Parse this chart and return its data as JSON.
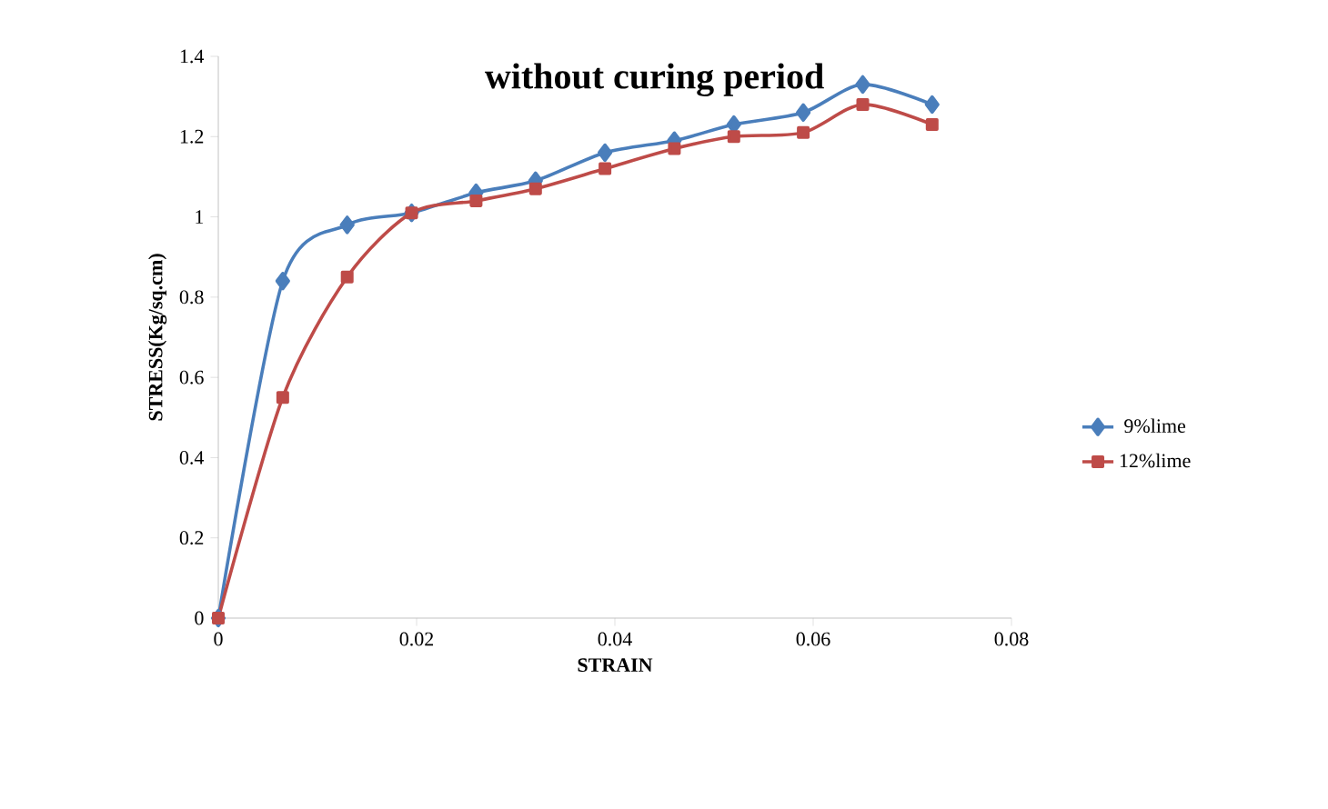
{
  "chart_data": {
    "type": "line",
    "title": "without curing period",
    "xlabel": "STRAIN",
    "ylabel": "STRESS(Kg/sq.cm)",
    "x": [
      0,
      0.0065,
      0.013,
      0.0195,
      0.026,
      0.032,
      0.039,
      0.046,
      0.052,
      0.059,
      0.065,
      0.072
    ],
    "series": [
      {
        "name": "9%lime",
        "color": "#4a7ebb",
        "marker": "diamond",
        "values": [
          0,
          0.84,
          0.98,
          1.01,
          1.06,
          1.09,
          1.16,
          1.19,
          1.23,
          1.26,
          1.33,
          1.28
        ]
      },
      {
        "name": "12%lime",
        "color": "#be4b48",
        "marker": "square",
        "values": [
          0,
          0.55,
          0.85,
          1.01,
          1.04,
          1.07,
          1.12,
          1.17,
          1.2,
          1.21,
          1.28,
          1.23
        ]
      }
    ],
    "xlim": [
      0,
      0.08
    ],
    "xticks": [
      0,
      0.02,
      0.04,
      0.06,
      0.08
    ],
    "ylim": [
      0,
      1.4
    ],
    "yticks": [
      0,
      0.2,
      0.4,
      0.6,
      0.8,
      1,
      1.2,
      1.4
    ],
    "grid": false,
    "legend": "right",
    "line_style": "solid"
  }
}
